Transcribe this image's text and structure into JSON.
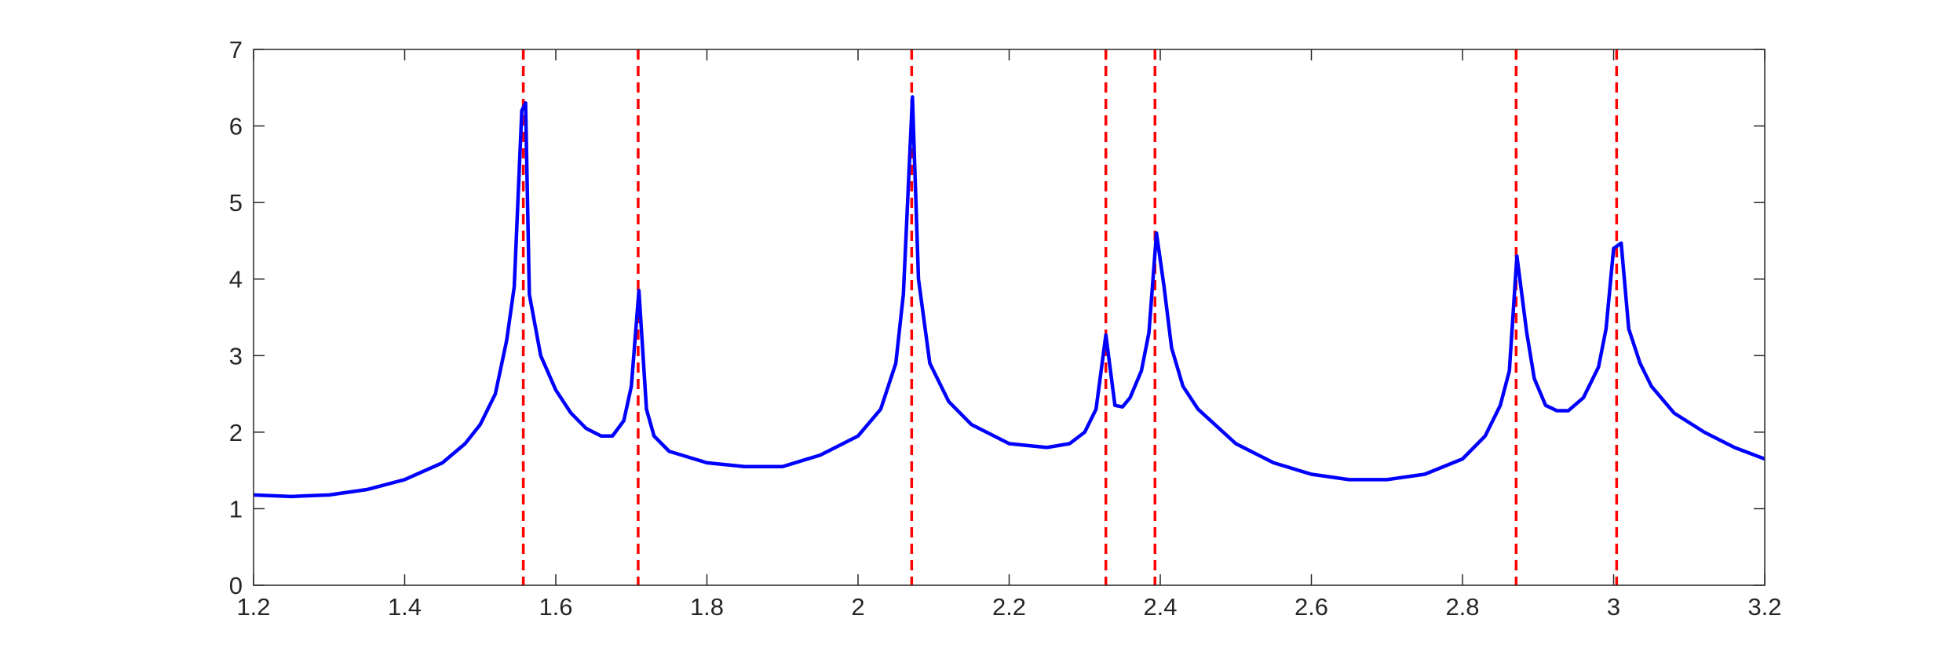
{
  "chart_data": {
    "type": "line",
    "x": [
      1.2,
      1.25,
      1.3,
      1.35,
      1.4,
      1.45,
      1.48,
      1.5,
      1.52,
      1.535,
      1.545,
      1.555,
      1.56,
      1.565,
      1.58,
      1.6,
      1.62,
      1.64,
      1.66,
      1.675,
      1.69,
      1.7,
      1.71,
      1.72,
      1.73,
      1.75,
      1.8,
      1.85,
      1.9,
      1.95,
      2.0,
      2.03,
      2.05,
      2.06,
      2.072,
      2.08,
      2.095,
      2.12,
      2.15,
      2.2,
      2.25,
      2.28,
      2.3,
      2.315,
      2.328,
      2.34,
      2.35,
      2.36,
      2.375,
      2.385,
      2.395,
      2.405,
      2.415,
      2.43,
      2.45,
      2.5,
      2.55,
      2.6,
      2.65,
      2.7,
      2.75,
      2.8,
      2.83,
      2.85,
      2.862,
      2.872,
      2.885,
      2.895,
      2.91,
      2.925,
      2.94,
      2.96,
      2.98,
      2.99,
      3.0,
      3.01,
      3.02,
      3.035,
      3.05,
      3.08,
      3.12,
      3.16,
      3.2
    ],
    "series": [
      {
        "color": "#0000ff",
        "values": [
          1.18,
          1.16,
          1.18,
          1.25,
          1.38,
          1.6,
          1.85,
          2.1,
          2.5,
          3.2,
          3.9,
          6.2,
          6.3,
          3.8,
          3.0,
          2.55,
          2.25,
          2.05,
          1.95,
          1.95,
          2.15,
          2.6,
          3.85,
          2.3,
          1.95,
          1.75,
          1.6,
          1.55,
          1.55,
          1.7,
          1.95,
          2.3,
          2.9,
          3.8,
          6.38,
          4.0,
          2.9,
          2.4,
          2.1,
          1.85,
          1.8,
          1.85,
          2.0,
          2.3,
          3.27,
          2.35,
          2.33,
          2.45,
          2.8,
          3.3,
          4.6,
          3.9,
          3.1,
          2.6,
          2.3,
          1.85,
          1.6,
          1.45,
          1.38,
          1.38,
          1.45,
          1.65,
          1.95,
          2.35,
          2.8,
          4.3,
          3.3,
          2.7,
          2.35,
          2.28,
          2.28,
          2.45,
          2.85,
          3.35,
          4.4,
          4.47,
          3.35,
          2.9,
          2.6,
          2.25,
          2.0,
          1.8,
          1.65
        ]
      }
    ],
    "vlines": {
      "color": "#ff0000",
      "x": [
        1.557,
        1.709,
        2.071,
        2.328,
        2.393,
        2.871,
        3.004
      ]
    },
    "xlim": [
      1.2,
      3.2
    ],
    "xticks": [
      1.2,
      1.4,
      1.6,
      1.8,
      2,
      2.2,
      2.4,
      2.6,
      2.8,
      3,
      3.2
    ],
    "ylim": [
      0,
      7
    ],
    "yticks": [
      0,
      1,
      2,
      3,
      4,
      5,
      6,
      7
    ],
    "grid": false
  }
}
